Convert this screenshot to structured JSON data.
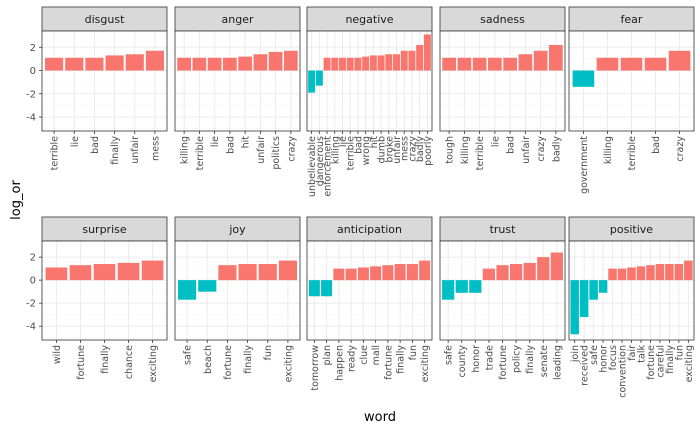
{
  "colors": {
    "positive": "#F8766D",
    "negative": "#00BFC4",
    "panel_bg": "#FFFFFF",
    "grid_major": "#EBEBEB",
    "grid_minor": "#F5F5F5",
    "strip_bg": "#D9D9D9",
    "frame": "#333333"
  },
  "axes": {
    "x_title": "word",
    "y_title": "log_or",
    "ylim": [
      -5.2,
      3.4
    ],
    "yticks": [
      "-4",
      "-2",
      "0",
      "2"
    ],
    "ytick_values": [
      -4,
      -2,
      0,
      2
    ]
  },
  "chart_data": {
    "type": "bar",
    "facet": "sentiment",
    "grid": true,
    "xlabel": "word",
    "ylabel": "log_or",
    "ylim": [
      -5.2,
      3.4
    ],
    "panels": [
      {
        "name": "disgust",
        "categories": [
          "terrible",
          "lie",
          "bad",
          "finally",
          "unfair",
          "mess"
        ],
        "values": [
          1.1,
          1.1,
          1.1,
          1.3,
          1.4,
          1.7
        ]
      },
      {
        "name": "anger",
        "categories": [
          "killing",
          "terrible",
          "lie",
          "bad",
          "hit",
          "unfair",
          "politics",
          "crazy"
        ],
        "values": [
          1.1,
          1.1,
          1.1,
          1.1,
          1.2,
          1.4,
          1.6,
          1.7
        ]
      },
      {
        "name": "negative",
        "categories": [
          "unbelievable",
          "dangerous",
          "enforcement",
          "killing",
          "lie",
          "terrible",
          "bad",
          "wrong",
          "hit",
          "dumb",
          "broke",
          "unfair",
          "mess",
          "crazy",
          "badly",
          "poorly"
        ],
        "values": [
          -1.9,
          -1.3,
          1.1,
          1.1,
          1.1,
          1.1,
          1.1,
          1.2,
          1.3,
          1.3,
          1.4,
          1.4,
          1.7,
          1.7,
          2.2,
          3.1
        ]
      },
      {
        "name": "sadness",
        "categories": [
          "tough",
          "killing",
          "terrible",
          "lie",
          "bad",
          "unfair",
          "crazy",
          "badly"
        ],
        "values": [
          1.1,
          1.1,
          1.1,
          1.1,
          1.1,
          1.4,
          1.7,
          2.2
        ]
      },
      {
        "name": "fear",
        "categories": [
          "government",
          "killing",
          "terrible",
          "bad",
          "crazy"
        ],
        "values": [
          -1.4,
          1.1,
          1.1,
          1.1,
          1.7
        ]
      },
      {
        "name": "surprise",
        "categories": [
          "wild",
          "fortune",
          "finally",
          "chance",
          "exciting"
        ],
        "values": [
          1.1,
          1.3,
          1.4,
          1.5,
          1.7
        ]
      },
      {
        "name": "joy",
        "categories": [
          "safe",
          "beach",
          "fortune",
          "finally",
          "fun",
          "exciting"
        ],
        "values": [
          -1.7,
          -1.0,
          1.3,
          1.4,
          1.4,
          1.7
        ]
      },
      {
        "name": "anticipation",
        "categories": [
          "tomorrow",
          "plan",
          "happen",
          "ready",
          "clue",
          "mall",
          "fortune",
          "finally",
          "fun",
          "exciting"
        ],
        "values": [
          -1.4,
          -1.4,
          1.0,
          1.0,
          1.1,
          1.2,
          1.3,
          1.4,
          1.4,
          1.7
        ]
      },
      {
        "name": "trust",
        "categories": [
          "safe",
          "county",
          "honor",
          "trade",
          "fortune",
          "policy",
          "finally",
          "senate",
          "leading"
        ],
        "values": [
          -1.7,
          -1.1,
          -1.1,
          1.0,
          1.3,
          1.4,
          1.5,
          2.0,
          2.4
        ]
      },
      {
        "name": "positive",
        "categories": [
          "join",
          "received",
          "safe",
          "honor",
          "focus",
          "convention",
          "fair",
          "talk",
          "fortune",
          "careful",
          "finally",
          "fun",
          "exciting"
        ],
        "values": [
          -4.7,
          -3.2,
          -1.7,
          -1.1,
          1.0,
          1.0,
          1.1,
          1.2,
          1.3,
          1.4,
          1.4,
          1.4,
          1.7
        ]
      }
    ]
  }
}
